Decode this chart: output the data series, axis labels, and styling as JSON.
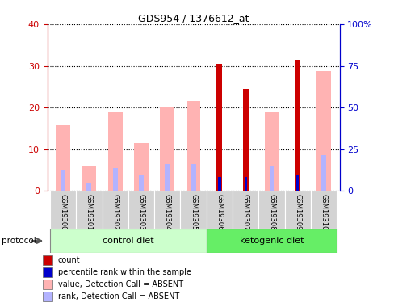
{
  "title": "GDS954 / 1376612_at",
  "samples": [
    "GSM19300",
    "GSM19301",
    "GSM19302",
    "GSM19303",
    "GSM19304",
    "GSM19305",
    "GSM19306",
    "GSM19307",
    "GSM19308",
    "GSM19309",
    "GSM19310"
  ],
  "value_absent": [
    15.8,
    6.0,
    18.8,
    11.5,
    20.0,
    21.5,
    null,
    null,
    18.8,
    null,
    28.8
  ],
  "rank_absent": [
    5.0,
    2.0,
    5.5,
    4.0,
    6.5,
    6.5,
    null,
    null,
    6.0,
    null,
    8.5
  ],
  "count_red": [
    null,
    null,
    null,
    null,
    null,
    null,
    30.5,
    24.5,
    null,
    31.5,
    null
  ],
  "percentile_blue": [
    null,
    null,
    null,
    null,
    null,
    null,
    8.5,
    8.5,
    null,
    10.0,
    null
  ],
  "ylim_left": [
    0,
    40
  ],
  "ylim_right": [
    0,
    100
  ],
  "yticks_left": [
    0,
    10,
    20,
    30,
    40
  ],
  "ytick_labels_right": [
    "0",
    "25",
    "50",
    "75",
    "100%"
  ],
  "left_axis_color": "#cc0000",
  "right_axis_color": "#0000cc",
  "value_absent_color": "#ffb3b3",
  "rank_absent_color": "#b3b3ff",
  "count_color": "#cc0000",
  "percentile_color": "#0000cc",
  "legend_items": [
    "count",
    "percentile rank within the sample",
    "value, Detection Call = ABSENT",
    "rank, Detection Call = ABSENT"
  ],
  "legend_colors": [
    "#cc0000",
    "#0000cc",
    "#ffb3b3",
    "#b3b3ff"
  ],
  "control_label": "control diet",
  "ketogenic_label": "ketogenic diet",
  "protocol_label": "protocol",
  "control_color": "#ccffcc",
  "ketogenic_color": "#66ee66",
  "sample_bg_color": "#d3d3d3",
  "group_border_color": "#888888"
}
